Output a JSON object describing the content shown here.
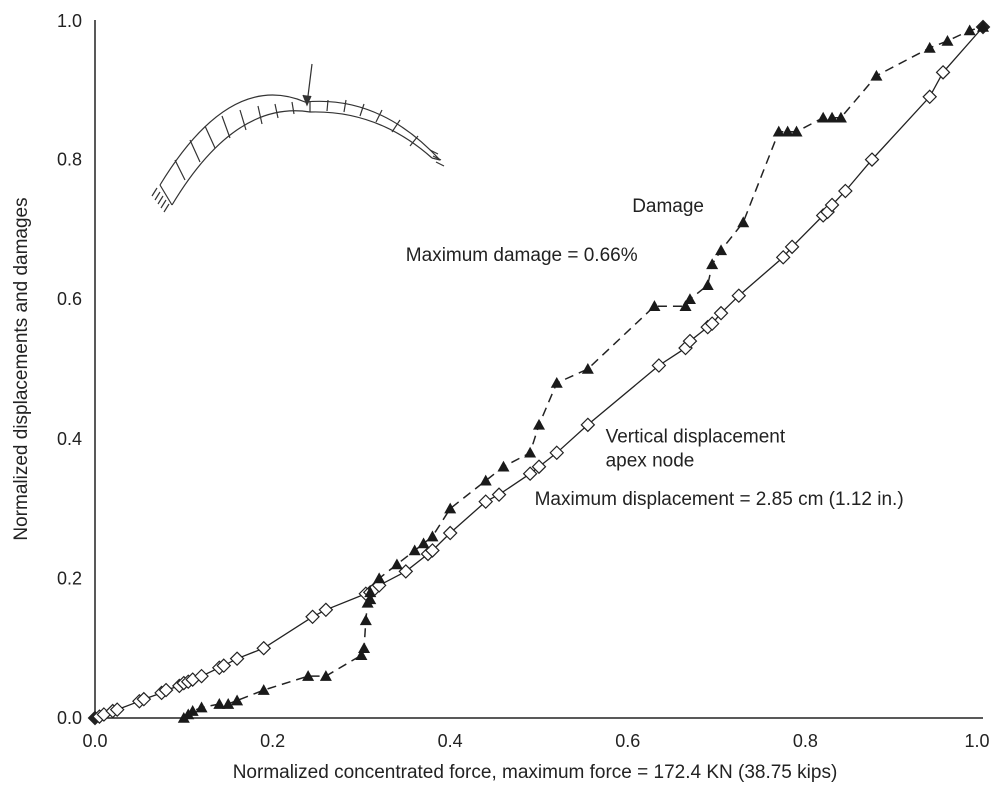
{
  "chart_data": {
    "type": "line",
    "xlabel": "Normalized concentrated force, maximum force = 172.4 KN (38.75 kips)",
    "ylabel": "Normalized displacements and damages",
    "xlim": [
      0,
      1
    ],
    "ylim": [
      0,
      1
    ],
    "xticks": [
      "0.0",
      "0.2",
      "0.4",
      "0.6",
      "0.8",
      "1.0"
    ],
    "yticks": [
      "0.0",
      "0.2",
      "0.4",
      "0.6",
      "0.8",
      "1.0"
    ],
    "grid": false,
    "series": [
      {
        "name": "Damage",
        "marker": "filled-triangle",
        "linestyle": "dashed",
        "color": "#222222",
        "x": [
          0.1,
          0.105,
          0.11,
          0.12,
          0.14,
          0.15,
          0.16,
          0.19,
          0.24,
          0.26,
          0.3,
          0.303,
          0.305,
          0.307,
          0.31,
          0.31,
          0.32,
          0.34,
          0.36,
          0.37,
          0.38,
          0.4,
          0.44,
          0.46,
          0.49,
          0.5,
          0.52,
          0.555,
          0.63,
          0.665,
          0.67,
          0.69,
          0.695,
          0.705,
          0.73,
          0.77,
          0.78,
          0.79,
          0.82,
          0.83,
          0.84,
          0.88,
          0.94,
          0.96,
          0.985,
          1.0
        ],
        "y": [
          0.0,
          0.005,
          0.01,
          0.015,
          0.02,
          0.02,
          0.025,
          0.04,
          0.06,
          0.06,
          0.09,
          0.1,
          0.14,
          0.165,
          0.17,
          0.18,
          0.2,
          0.22,
          0.24,
          0.25,
          0.26,
          0.3,
          0.34,
          0.36,
          0.38,
          0.42,
          0.48,
          0.5,
          0.59,
          0.59,
          0.6,
          0.62,
          0.65,
          0.67,
          0.71,
          0.84,
          0.84,
          0.84,
          0.86,
          0.86,
          0.86,
          0.92,
          0.96,
          0.97,
          0.985,
          0.99
        ]
      },
      {
        "name": "Vertical displacement apex node",
        "marker": "open-diamond",
        "linestyle": "solid",
        "color": "#222222",
        "x": [
          0.0,
          0.005,
          0.01,
          0.02,
          0.025,
          0.05,
          0.055,
          0.075,
          0.08,
          0.095,
          0.1,
          0.105,
          0.11,
          0.12,
          0.14,
          0.145,
          0.16,
          0.19,
          0.245,
          0.26,
          0.305,
          0.31,
          0.315,
          0.32,
          0.35,
          0.375,
          0.38,
          0.4,
          0.44,
          0.455,
          0.49,
          0.5,
          0.52,
          0.555,
          0.635,
          0.665,
          0.67,
          0.69,
          0.695,
          0.705,
          0.725,
          0.775,
          0.785,
          0.82,
          0.825,
          0.83,
          0.845,
          0.875,
          0.94,
          0.955,
          1.0
        ],
        "y": [
          0.0,
          0.002,
          0.005,
          0.01,
          0.012,
          0.024,
          0.027,
          0.036,
          0.04,
          0.046,
          0.05,
          0.052,
          0.055,
          0.06,
          0.072,
          0.075,
          0.085,
          0.1,
          0.145,
          0.155,
          0.178,
          0.18,
          0.185,
          0.19,
          0.21,
          0.235,
          0.24,
          0.265,
          0.31,
          0.32,
          0.35,
          0.36,
          0.38,
          0.42,
          0.505,
          0.53,
          0.54,
          0.56,
          0.565,
          0.58,
          0.605,
          0.66,
          0.675,
          0.72,
          0.725,
          0.735,
          0.755,
          0.8,
          0.89,
          0.925,
          0.99
        ]
      }
    ],
    "annotations": [
      {
        "text": "Damage",
        "x": 0.605,
        "y": 0.725
      },
      {
        "text": "Maximum damage = 0.66%",
        "x": 0.35,
        "y": 0.655
      },
      {
        "text": "Vertical displacement",
        "x": 0.575,
        "y": 0.395
      },
      {
        "text": "apex node",
        "x": 0.575,
        "y": 0.36
      },
      {
        "text": "Maximum displacement = 2.85 cm (1.12 in.)",
        "x": 0.495,
        "y": 0.305
      }
    ]
  }
}
